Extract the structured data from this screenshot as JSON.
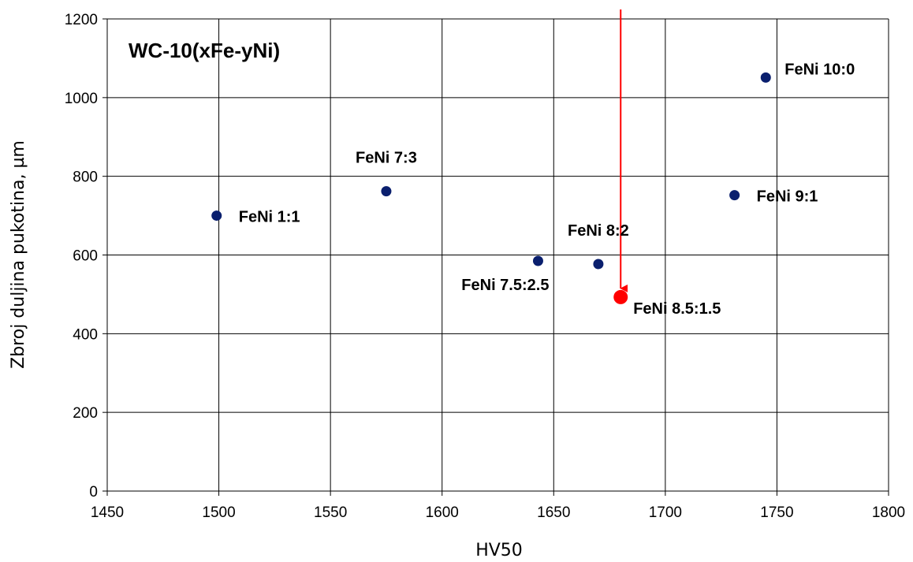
{
  "chart_data": {
    "type": "scatter",
    "title": "WC-10(xFe-yNi)",
    "xlabel": "HV50",
    "ylabel": "Zbroj duljina pukotina, µm",
    "xlim": [
      1450,
      1800
    ],
    "ylim": [
      0,
      1200
    ],
    "xticks": [
      1450,
      1500,
      1550,
      1600,
      1650,
      1700,
      1750,
      1800
    ],
    "yticks": [
      0,
      200,
      400,
      600,
      800,
      1000,
      1200
    ],
    "grid": true,
    "legend": "none",
    "colors": {
      "points": "#0a1f6e",
      "highlight": "#ff0000",
      "grid": "#000000"
    },
    "points": [
      {
        "label": "FeNi 1:1",
        "x": 1499,
        "y": 700,
        "highlight": false,
        "label_pos": "right"
      },
      {
        "label": "FeNi 7:3",
        "x": 1575,
        "y": 762,
        "highlight": false,
        "label_pos": "above"
      },
      {
        "label": "FeNi 7.5:2.5",
        "x": 1643,
        "y": 585,
        "highlight": false,
        "label_pos": "below-left"
      },
      {
        "label": "FeNi 8:2",
        "x": 1670,
        "y": 577,
        "highlight": false,
        "label_pos": "above"
      },
      {
        "label": "FeNi 8.5:1.5",
        "x": 1680,
        "y": 493,
        "highlight": true,
        "label_pos": "below-right"
      },
      {
        "label": "FeNi 9:1",
        "x": 1731,
        "y": 752,
        "highlight": false,
        "label_pos": "right"
      },
      {
        "label": "FeNi 10:0",
        "x": 1745,
        "y": 1051,
        "highlight": false,
        "label_pos": "above-right"
      }
    ],
    "annotations": [
      {
        "type": "arrow",
        "x": 1680,
        "y_from": 1220,
        "y_to": 515,
        "color": "#ff0000"
      }
    ]
  }
}
